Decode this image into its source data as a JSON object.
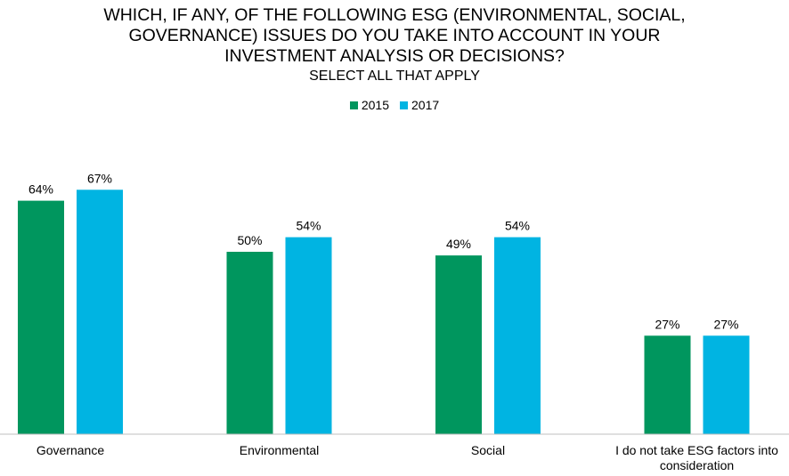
{
  "title": "WHICH, IF ANY, OF THE FOLLOWING ESG (ENVIRONMENTAL, SOCIAL,\nGOVERNANCE) ISSUES DO YOU TAKE INTO ACCOUNT IN YOUR\nINVESTMENT ANALYSIS OR DECISIONS?",
  "subtitle": "SELECT ALL THAT APPLY",
  "colors": {
    "s2015": "#00965e",
    "s2017": "#00b4e2",
    "axis": "#bfbfbf"
  },
  "chart_data": {
    "type": "bar",
    "categories": [
      "Governance",
      "Environmental",
      "Social",
      "I do not take ESG factors into consideration"
    ],
    "category_lines": [
      [
        "Governance"
      ],
      [
        "Environmental"
      ],
      [
        "Social"
      ],
      [
        "I do not take ESG factors into",
        "consideration"
      ]
    ],
    "series": [
      {
        "name": "2015",
        "values": [
          64,
          50,
          49,
          27
        ],
        "labels": [
          "64%",
          "50%",
          "49%",
          "27%"
        ]
      },
      {
        "name": "2017",
        "values": [
          67,
          54,
          54,
          27
        ],
        "labels": [
          "67%",
          "54%",
          "54%",
          "27%"
        ]
      }
    ],
    "ylim": [
      0,
      100
    ],
    "legend_position": "top-center",
    "grid": false
  }
}
